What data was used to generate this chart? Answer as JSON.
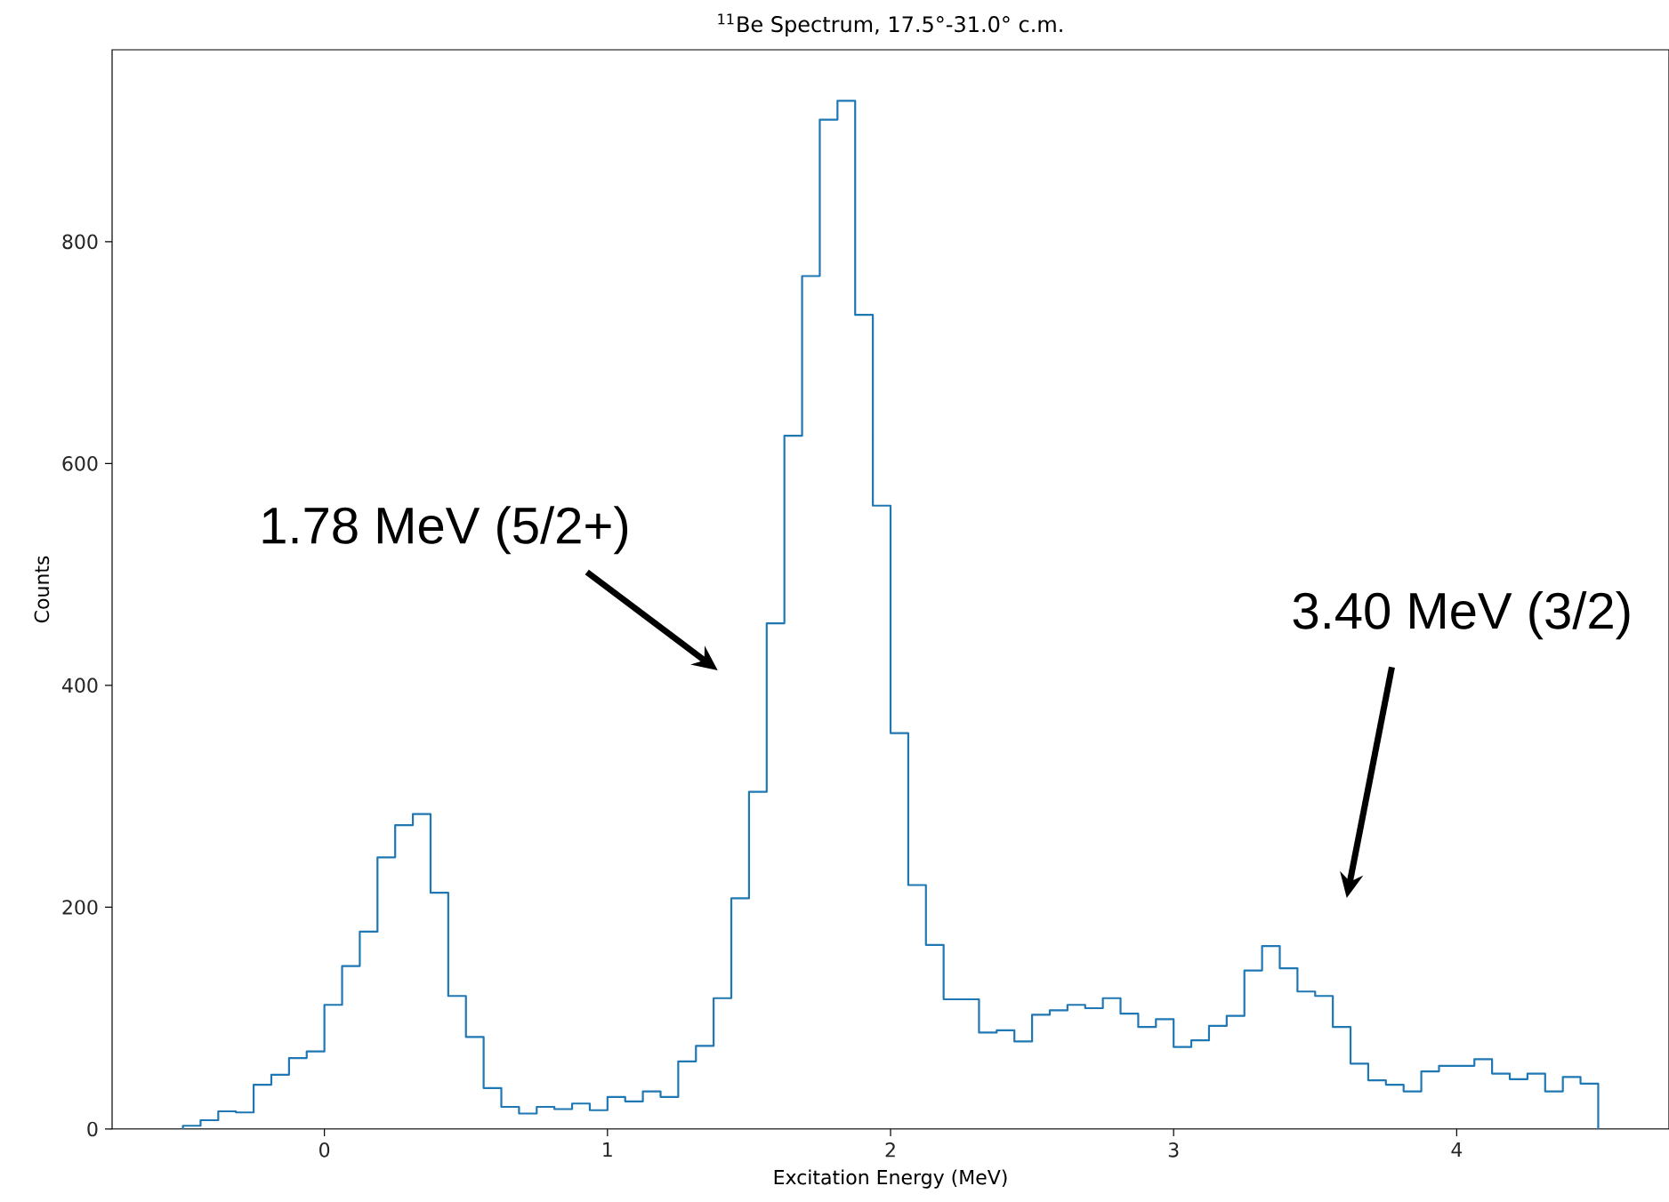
{
  "chart_data": {
    "type": "histogram",
    "title": "$^{11}$Be Spectrum, 17.5°-31.0° c.m.",
    "xlabel": "Excitation Energy (MeV)",
    "ylabel": "Counts",
    "color": "#1f77b4",
    "bins": [
      -0.5,
      -0.4375,
      -0.375,
      -0.3125,
      -0.25,
      -0.1875,
      -0.125,
      -0.0625,
      0,
      0.0625,
      0.125,
      0.1875,
      0.25,
      0.3125,
      0.375,
      0.4375,
      0.5,
      0.5625,
      0.625,
      0.6875,
      0.75,
      0.8125,
      0.875,
      0.9375,
      1,
      1.0625,
      1.125,
      1.1875,
      1.25,
      1.3125,
      1.375,
      1.4375,
      1.5,
      1.5625,
      1.625,
      1.6875,
      1.75,
      1.8125,
      1.875,
      1.9375,
      2,
      2.0625,
      2.125,
      2.1875,
      2.25,
      2.3125,
      2.375,
      2.4375,
      2.5,
      2.5625,
      2.625,
      2.6875,
      2.75,
      2.8125,
      2.875,
      2.9375,
      3,
      3.0625,
      3.125,
      3.1875,
      3.25,
      3.3125,
      3.375,
      3.4375,
      3.5,
      3.5625,
      3.625,
      3.6875,
      3.75,
      3.8125,
      3.875,
      3.9375,
      4,
      4.0625,
      4.125,
      4.1875,
      4.25,
      4.3125,
      4.375,
      4.4375,
      4.5
    ],
    "values": [
      3,
      8,
      16,
      15,
      40,
      49,
      64,
      70,
      112,
      147,
      178,
      245,
      274,
      284,
      213,
      120,
      83,
      37,
      20,
      14,
      20,
      18,
      23,
      17,
      29,
      25,
      34,
      29,
      61,
      75,
      118,
      208,
      304,
      456,
      625,
      769,
      910,
      927,
      734,
      562,
      357,
      220,
      166,
      117,
      117,
      87,
      89,
      79,
      103,
      107,
      112,
      109,
      118,
      104,
      92,
      99,
      74,
      80,
      93,
      102,
      143,
      165,
      145,
      124,
      120,
      92,
      59,
      44,
      40,
      34,
      52,
      57,
      57,
      63,
      50,
      45,
      50,
      34,
      47,
      41
    ],
    "xlim": [
      -0.75,
      4.75
    ],
    "ylim": [
      0,
      973
    ],
    "xticks": [
      0,
      1,
      2,
      3,
      4
    ],
    "yticks": [
      0,
      200,
      400,
      600,
      800
    ],
    "annotations": [
      "1.78 MeV (5/2+)",
      "3.40 MeV (3/2)"
    ]
  }
}
